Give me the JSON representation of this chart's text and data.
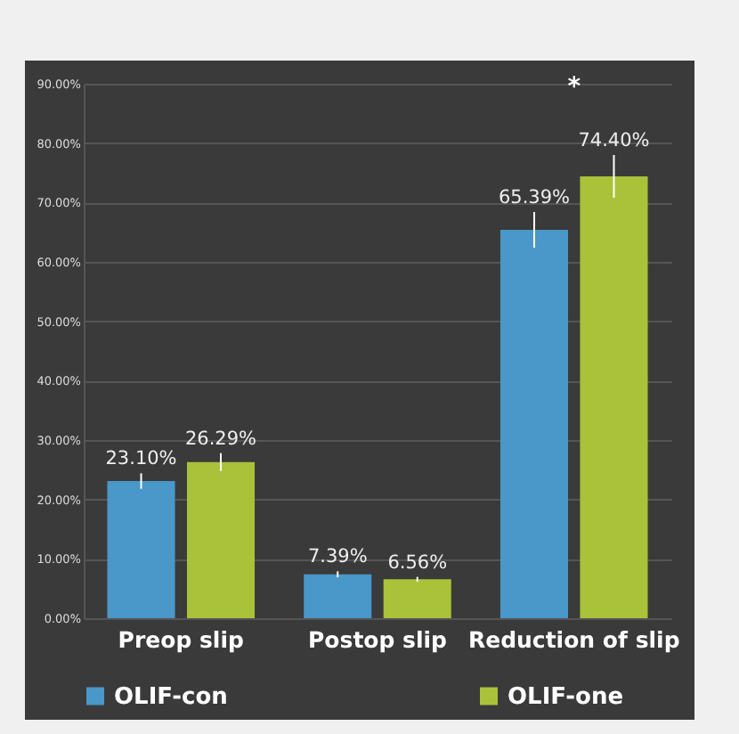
{
  "chart_data": {
    "type": "bar",
    "categories": [
      "Preop slip",
      "Postop slip",
      "Reduction of slip"
    ],
    "series": [
      {
        "name": "OLIF-con",
        "color": "#4a97c9",
        "values": [
          23.1,
          7.39,
          65.39
        ],
        "errors": [
          1.3,
          0.5,
          3.0
        ],
        "value_labels": [
          "23.10%",
          "7.39%",
          "65.39%"
        ]
      },
      {
        "name": "OLIF-one",
        "color": "#a9c23a",
        "values": [
          26.29,
          6.56,
          74.4
        ],
        "errors": [
          1.5,
          0.4,
          3.6
        ],
        "value_labels": [
          "26.29%",
          "6.56%",
          "74.40%"
        ]
      }
    ],
    "ylim": [
      0,
      90
    ],
    "yticks": [
      {
        "value": 0,
        "label": "0.00%"
      },
      {
        "value": 10,
        "label": "10.00%"
      },
      {
        "value": 20,
        "label": "20.00%"
      },
      {
        "value": 30,
        "label": "30.00%"
      },
      {
        "value": 40,
        "label": "40.00%"
      },
      {
        "value": 50,
        "label": "50.00%"
      },
      {
        "value": 60,
        "label": "60.00%"
      },
      {
        "value": 70,
        "label": "70.00%"
      },
      {
        "value": 80,
        "label": "80.00%"
      },
      {
        "value": 90,
        "label": "90.00%"
      }
    ],
    "grid": "y",
    "legend": "bottom",
    "annotations": [
      "*"
    ]
  }
}
